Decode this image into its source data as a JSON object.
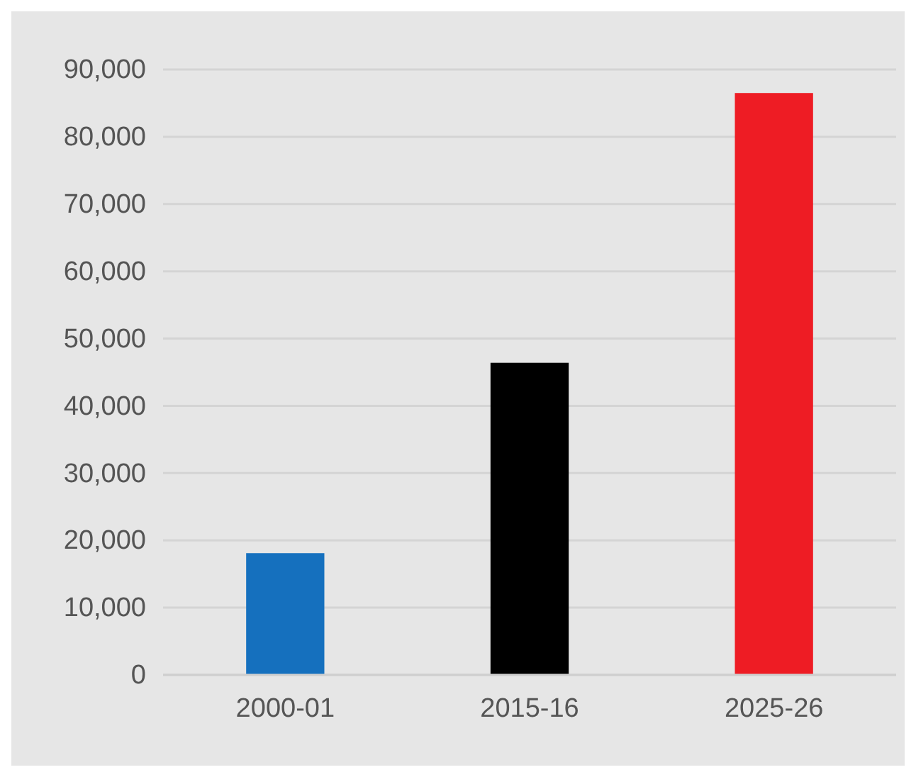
{
  "chart_data": {
    "type": "bar",
    "categories": [
      "2000-01",
      "2015-16",
      "2025-26"
    ],
    "values": [
      18100,
      46400,
      86500
    ],
    "colors": [
      "#1570be",
      "#000000",
      "#ee1c24"
    ],
    "ylim": [
      0,
      90000
    ],
    "yticks": [
      {
        "value": 0,
        "label": "0"
      },
      {
        "value": 10000,
        "label": "10,000"
      },
      {
        "value": 20000,
        "label": "20,000"
      },
      {
        "value": 30000,
        "label": "30,000"
      },
      {
        "value": 40000,
        "label": "40,000"
      },
      {
        "value": 50000,
        "label": "50,000"
      },
      {
        "value": 60000,
        "label": "60,000"
      },
      {
        "value": 70000,
        "label": "70,000"
      },
      {
        "value": 80000,
        "label": "80,000"
      },
      {
        "value": 90000,
        "label": "90,000"
      }
    ],
    "grid": "y"
  }
}
